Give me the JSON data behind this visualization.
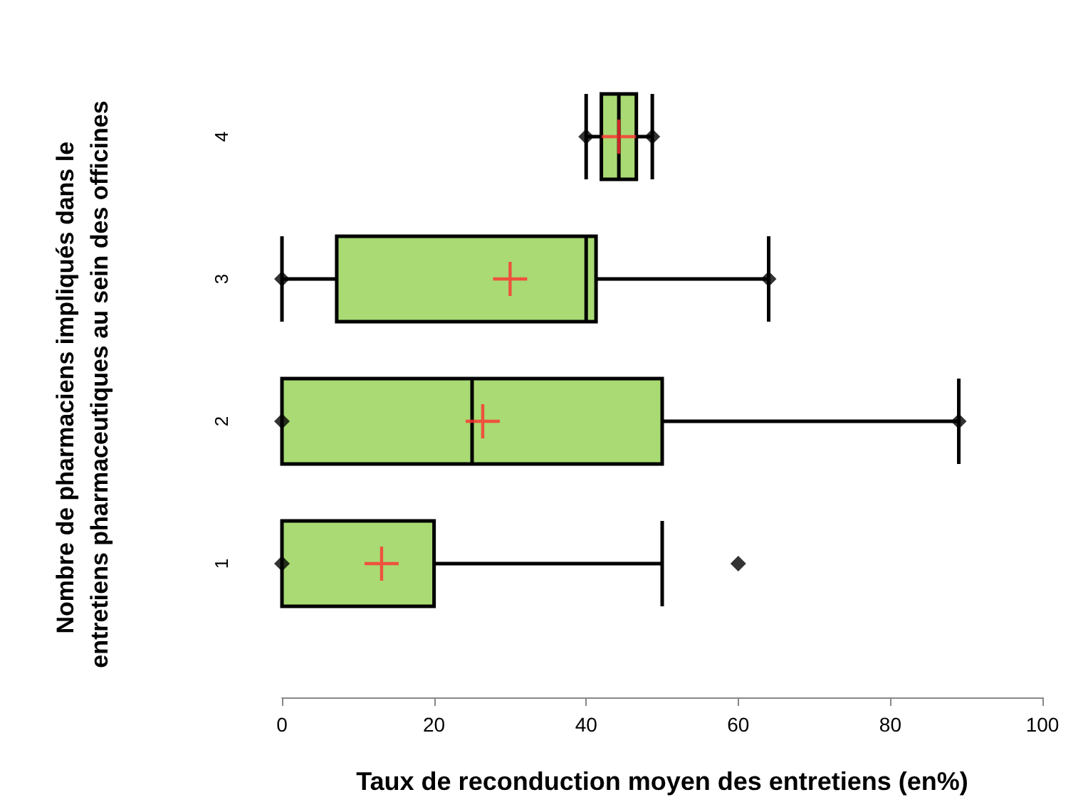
{
  "chart_data": {
    "type": "box",
    "orientation": "horizontal",
    "xlabel": "Taux de reconduction moyen des entretiens (en%)",
    "ylabel": "Nombre de pharmaciens impliqués dans le entretiens pharmaceutiques au sein des officines",
    "categories": [
      "4",
      "3",
      "2",
      "1"
    ],
    "color": "#a9da74",
    "boxes": [
      {
        "low": 40,
        "q1": 42,
        "median": 44.3,
        "q3": 46.6,
        "high": 48.7,
        "mean": 44.3,
        "outliers": [
          40,
          48.7
        ]
      },
      {
        "low": 0,
        "q1": 7.2,
        "median": 40,
        "q3": 41.3,
        "high": 64,
        "mean": 30,
        "outliers": [
          0,
          64
        ]
      },
      {
        "low": 0,
        "q1": 0,
        "median": 25,
        "q3": 50,
        "high": 89,
        "mean": 26.4,
        "outliers": [
          0,
          89
        ]
      },
      {
        "low": 0,
        "q1": 0,
        "median": 0,
        "q3": 20,
        "high": 50,
        "mean": 13.1,
        "outliers": [
          0,
          60
        ]
      }
    ],
    "xlim": [
      0,
      100
    ],
    "xticks": [
      0,
      20,
      40,
      60,
      80,
      100
    ],
    "grid": false,
    "legend": false
  }
}
